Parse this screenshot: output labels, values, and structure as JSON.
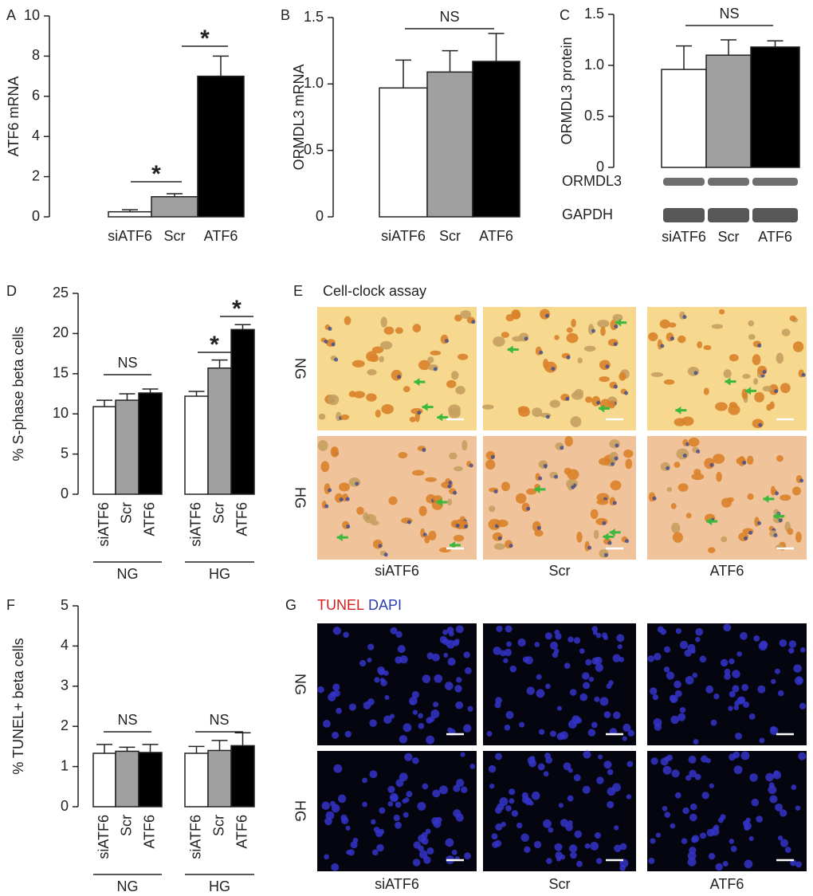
{
  "chart_data": [
    {
      "type": "bar",
      "panel": "A",
      "ylabel": "ATF6 mRNA",
      "categories": [
        "siATF6",
        "Scr",
        "ATF6"
      ],
      "values": [
        0.25,
        1.0,
        7.0
      ],
      "errors": [
        0.1,
        0.15,
        1.0
      ],
      "colors": [
        "#ffffff",
        "#a0a0a0",
        "#000000"
      ],
      "ylim": [
        0,
        10
      ],
      "yticks": [
        0,
        2,
        4,
        6,
        8,
        10
      ],
      "annotations": [
        "*",
        "*"
      ]
    },
    {
      "type": "bar",
      "panel": "B",
      "ylabel": "ORMDL3 mRNA",
      "categories": [
        "siATF6",
        "Scr",
        "ATF6"
      ],
      "values": [
        0.97,
        1.09,
        1.17
      ],
      "errors": [
        0.21,
        0.16,
        0.21
      ],
      "colors": [
        "#ffffff",
        "#a0a0a0",
        "#000000"
      ],
      "ylim": [
        0,
        1.5
      ],
      "yticks": [
        0,
        0.5,
        {
          "value": 1,
          "label": "1.0"
        },
        1.5
      ],
      "annotations": [
        "NS"
      ]
    },
    {
      "type": "bar",
      "panel": "C",
      "ylabel": "ORMDL3 protein",
      "categories": [
        "siATF6",
        "Scr",
        "ATF6"
      ],
      "values": [
        0.96,
        1.1,
        1.18
      ],
      "errors": [
        0.23,
        0.15,
        0.06
      ],
      "colors": [
        "#ffffff",
        "#a0a0a0",
        "#000000"
      ],
      "ylim": [
        0,
        1.5
      ],
      "yticks": [
        0,
        0.5,
        {
          "value": 1,
          "label": "1.0"
        },
        1.5
      ],
      "annotations": [
        "NS"
      ],
      "blots": [
        "ORMDL3",
        "GAPDH"
      ]
    },
    {
      "type": "grouped_bar",
      "panel": "D",
      "ylabel": "% S-phase beta cells",
      "colors": [
        "#ffffff",
        "#a0a0a0",
        "#000000"
      ],
      "ylim": [
        0,
        25
      ],
      "yticks": [
        0,
        5,
        10,
        15,
        20,
        25
      ],
      "annotations": [
        "NS",
        "*",
        "*"
      ],
      "groups": [
        {
          "name": "NG",
          "categories": [
            "siATF6",
            "Scr",
            "ATF6"
          ],
          "values": [
            10.9,
            11.7,
            12.6
          ],
          "errors": [
            0.8,
            0.8,
            0.5
          ]
        },
        {
          "name": "HG",
          "categories": [
            "siATF6",
            "Scr",
            "ATF6"
          ],
          "values": [
            12.2,
            15.7,
            20.5
          ],
          "errors": [
            0.6,
            1.0,
            0.6
          ]
        }
      ]
    },
    {
      "type": "grouped_bar",
      "panel": "F",
      "ylabel": "% TUNEL+ beta cells",
      "colors": [
        "#ffffff",
        "#a0a0a0",
        "#000000"
      ],
      "ylim": [
        0,
        5
      ],
      "yticks": [
        0,
        1,
        2,
        3,
        4,
        5
      ],
      "annotations": [
        "NS",
        "NS"
      ],
      "groups": [
        {
          "name": "NG",
          "categories": [
            "siATF6",
            "Scr",
            "ATF6"
          ],
          "values": [
            1.33,
            1.38,
            1.35
          ],
          "errors": [
            0.22,
            0.1,
            0.2
          ]
        },
        {
          "name": "HG",
          "categories": [
            "siATF6",
            "Scr",
            "ATF6"
          ],
          "values": [
            1.33,
            1.4,
            1.52
          ],
          "errors": [
            0.17,
            0.25,
            0.32
          ]
        }
      ]
    }
  ],
  "image_panels": [
    {
      "panel": "E",
      "title": "Cell-clock assay",
      "rows": [
        "NG",
        "HG"
      ],
      "columns": [
        "siATF6",
        "Scr",
        "ATF6"
      ]
    },
    {
      "panel": "G",
      "title": [
        "TUNEL",
        "DAPI"
      ],
      "rows": [
        "NG",
        "HG"
      ],
      "columns": [
        "siATF6",
        "Scr",
        "ATF6"
      ]
    }
  ]
}
